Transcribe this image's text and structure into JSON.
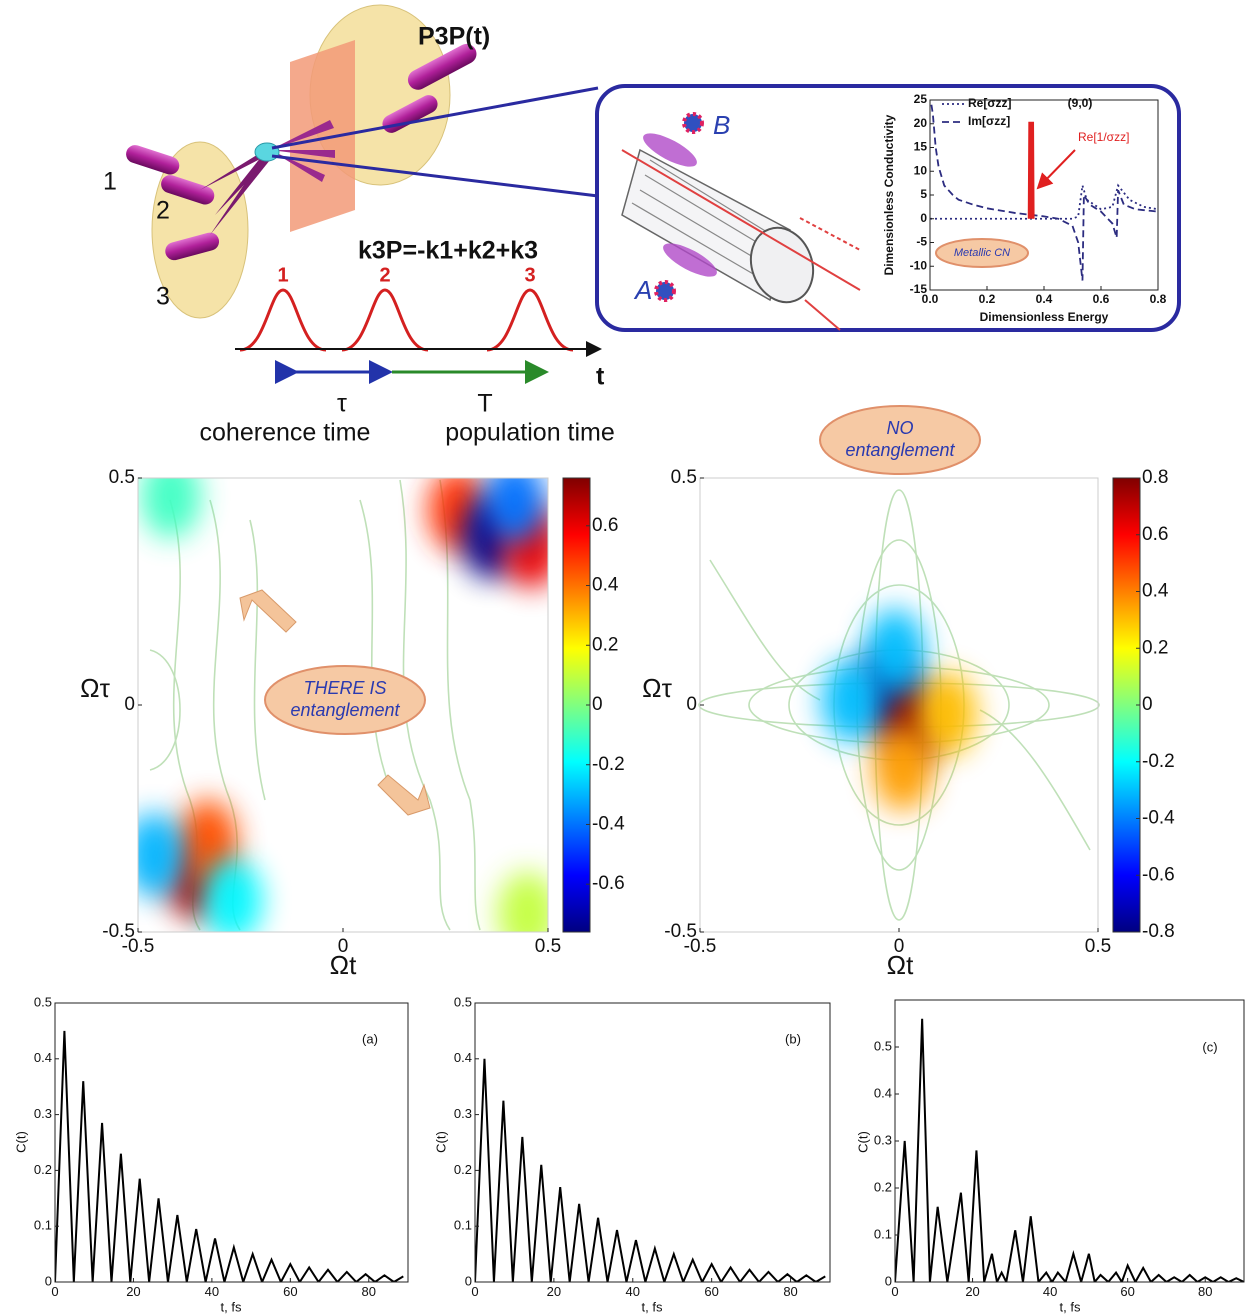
{
  "diagram": {
    "beam_labels": [
      "1",
      "2",
      "3"
    ],
    "signal": "P3P(t)",
    "wavevector": "k3P=-k1+k2+k3",
    "pulse_labels": [
      "1",
      "2",
      "3"
    ],
    "time_axis": "t",
    "intervals": [
      {
        "symbol": "τ",
        "label": "coherence time"
      },
      {
        "symbol": "T",
        "label": "population time"
      }
    ],
    "molecules": [
      "A",
      "B"
    ]
  },
  "chart_data": [
    {
      "type": "line",
      "x_label": "Dimensionless Energy",
      "y_label": "Dimensionless Conductivity",
      "annotations": [
        "(9,0)",
        "Metallic CN"
      ],
      "legend": "upper left",
      "xlim": [
        0,
        0.8
      ],
      "xticks": [
        {
          "value": 0,
          "label": "0.0"
        },
        0.2,
        0.4,
        0.6,
        0.8
      ],
      "ylim": [
        -15,
        25
      ],
      "yticks": [
        -15,
        -10,
        -5,
        0,
        5,
        10,
        15,
        20,
        25
      ],
      "series": [
        {
          "name": "Re[σzz]",
          "color": "#2c2c80",
          "dash": "dotted",
          "x": [
            0,
            0.1,
            0.2,
            0.3,
            0.4,
            0.5,
            0.52,
            0.535,
            0.55,
            0.6,
            0.64,
            0.66,
            0.7,
            0.75,
            0.8
          ],
          "values": [
            0,
            0,
            0,
            0,
            0,
            0,
            0.5,
            7,
            4,
            2,
            2.5,
            7,
            4,
            2.5,
            2
          ]
        },
        {
          "name": "Im[σzz]",
          "color": "#2c2c80",
          "dash": "dashed",
          "x": [
            0.005,
            0.01,
            0.02,
            0.03,
            0.05,
            0.08,
            0.1,
            0.15,
            0.2,
            0.3,
            0.4,
            0.45,
            0.5,
            0.52,
            0.535,
            0.54,
            0.56,
            0.6,
            0.64,
            0.655,
            0.66,
            0.68,
            0.72,
            0.8
          ],
          "values": [
            24,
            22,
            15,
            11,
            7,
            5,
            4,
            3,
            2.2,
            1.2,
            0.5,
            0,
            -1.5,
            -5,
            -13,
            5,
            3,
            1.5,
            -1,
            -4,
            6,
            3,
            2,
            1.5
          ]
        },
        {
          "name": "Re[1/σzz]",
          "color": "#e02020",
          "x": [
            0.35,
            0.352,
            0.358,
            0.36
          ],
          "values": [
            0,
            20,
            20,
            0
          ]
        }
      ]
    },
    {
      "type": "heatmap",
      "x_label": "Ωt",
      "y_label": "Ωτ",
      "annotation": [
        "THERE IS",
        "entanglement"
      ],
      "xlim": [
        -0.5,
        0.5
      ],
      "xticks": [
        -0.5,
        0,
        0.5
      ],
      "ylim": [
        -0.5,
        0.5
      ],
      "yticks": [
        -0.5,
        0,
        0.5
      ],
      "colorbar_lim": [
        -0.76,
        0.76
      ],
      "colorbar_ticks": [
        -0.6,
        -0.4,
        -0.2,
        0,
        0.2,
        0.4,
        0.6
      ],
      "peaks": [
        {
          "x": -0.36,
          "y": -0.38,
          "value": 0.7
        },
        {
          "x": -0.33,
          "y": -0.3,
          "value": 0.45
        },
        {
          "x": -0.46,
          "y": -0.33,
          "value": -0.3
        },
        {
          "x": -0.27,
          "y": -0.43,
          "value": -0.2
        },
        {
          "x": 0.28,
          "y": 0.43,
          "value": 0.5
        },
        {
          "x": 0.36,
          "y": 0.37,
          "value": -0.75
        },
        {
          "x": 0.46,
          "y": 0.35,
          "value": 0.6
        },
        {
          "x": 0.42,
          "y": 0.45,
          "value": -0.4
        },
        {
          "x": -0.42,
          "y": 0.46,
          "value": -0.1
        },
        {
          "x": 0.45,
          "y": -0.46,
          "value": 0.1
        }
      ]
    },
    {
      "type": "heatmap",
      "x_label": "Ωt",
      "y_label": "Ωτ",
      "annotation": [
        "NO",
        "entanglement"
      ],
      "xlim": [
        -0.5,
        0.5
      ],
      "xticks": [
        -0.5,
        0,
        0.5
      ],
      "ylim": [
        -0.5,
        0.5
      ],
      "yticks": [
        -0.5,
        0,
        0.5
      ],
      "colorbar_lim": [
        -0.8,
        0.8
      ],
      "colorbar_ticks": [
        -0.8,
        -0.6,
        -0.4,
        -0.2,
        0,
        0.2,
        0.4,
        0.6,
        0.8
      ],
      "peaks": [
        {
          "x": -0.03,
          "y": 0.03,
          "value": -0.8
        },
        {
          "x": 0.03,
          "y": -0.04,
          "value": 0.8
        },
        {
          "x": -0.12,
          "y": 0.01,
          "value": -0.3
        },
        {
          "x": 0.12,
          "y": -0.02,
          "value": 0.3
        },
        {
          "x": 0.01,
          "y": -0.14,
          "value": 0.35
        },
        {
          "x": -0.01,
          "y": 0.12,
          "value": -0.3
        }
      ]
    },
    {
      "type": "line",
      "panel": "(a)",
      "x_label": "t, fs",
      "y_label": "C(t)",
      "color": "#000000",
      "xlim": [
        0,
        90
      ],
      "xticks": [
        0,
        20,
        40,
        60,
        80
      ],
      "ylim": [
        0,
        0.5
      ],
      "yticks": [
        0,
        0.1,
        0.2,
        0.3,
        0.4,
        0.5
      ],
      "x": [
        0,
        2.4,
        4.8,
        7.2,
        9.6,
        12,
        14.4,
        16.8,
        19.2,
        21.6,
        24,
        26.4,
        28.8,
        31.2,
        33.6,
        36,
        38.4,
        40.8,
        43.2,
        45.6,
        48,
        50.4,
        52.8,
        55.2,
        57.6,
        60,
        62.4,
        64.8,
        67.2,
        69.6,
        72,
        74.4,
        76.8,
        79.2,
        81.6,
        84,
        86.4,
        88.8
      ],
      "values": [
        0,
        0.45,
        0,
        0.36,
        0,
        0.285,
        0,
        0.23,
        0,
        0.185,
        0,
        0.15,
        0,
        0.12,
        0,
        0.095,
        0,
        0.078,
        0,
        0.062,
        0,
        0.05,
        0,
        0.04,
        0,
        0.032,
        0,
        0.026,
        0,
        0.022,
        0,
        0.018,
        0,
        0.014,
        0,
        0.012,
        0,
        0.01
      ]
    },
    {
      "type": "line",
      "panel": "(b)",
      "x_label": "t, fs",
      "y_label": "C(t)",
      "color": "#000000",
      "xlim": [
        0,
        90
      ],
      "xticks": [
        0,
        20,
        40,
        60,
        80
      ],
      "ylim": [
        0,
        0.5
      ],
      "yticks": [
        0,
        0.1,
        0.2,
        0.3,
        0.4,
        0.5
      ],
      "x": [
        0,
        2.4,
        4.8,
        7.2,
        9.6,
        12,
        14.4,
        16.8,
        19.2,
        21.6,
        24,
        26.4,
        28.8,
        31.2,
        33.6,
        36,
        38.4,
        40.8,
        43.2,
        45.6,
        48,
        50.4,
        52.8,
        55.2,
        57.6,
        60,
        62.4,
        64.8,
        67.2,
        69.6,
        72,
        74.4,
        76.8,
        79.2,
        81.6,
        84,
        86.4,
        88.8
      ],
      "values": [
        0,
        0.4,
        0,
        0.325,
        0,
        0.26,
        0,
        0.21,
        0,
        0.17,
        0,
        0.14,
        0,
        0.115,
        0,
        0.093,
        0,
        0.075,
        0,
        0.06,
        0,
        0.05,
        0,
        0.04,
        0,
        0.032,
        0,
        0.026,
        0,
        0.022,
        0,
        0.018,
        0,
        0.014,
        0,
        0.012,
        0,
        0.01
      ]
    },
    {
      "type": "line",
      "panel": "(c)",
      "x_label": "t, fs",
      "y_label": "C(t)",
      "color": "#000000",
      "xlim": [
        0,
        90
      ],
      "xticks": [
        0,
        20,
        40,
        60,
        80
      ],
      "ylim": [
        0,
        0.6
      ],
      "yticks": [
        0,
        0.1,
        0.2,
        0.3,
        0.4,
        0.5
      ],
      "x": [
        0,
        2.5,
        4.8,
        7,
        9,
        11,
        13.5,
        17,
        19,
        21,
        23,
        25,
        26.3,
        27.5,
        28.7,
        31,
        33,
        35,
        37,
        39,
        40.5,
        42,
        44,
        46,
        48,
        50,
        51.5,
        53,
        55,
        57,
        58.5,
        60,
        62,
        64,
        66,
        68,
        70,
        72,
        74,
        76,
        78,
        80,
        82,
        84,
        86,
        88,
        90
      ],
      "values": [
        0,
        0.3,
        0,
        0.56,
        0,
        0.16,
        0,
        0.19,
        0,
        0.28,
        0,
        0.06,
        0,
        0.02,
        0,
        0.11,
        0,
        0.14,
        0,
        0.02,
        0,
        0.02,
        0,
        0.06,
        0,
        0.06,
        0,
        0.015,
        0,
        0.02,
        0,
        0.035,
        0,
        0.03,
        0,
        0.015,
        0,
        0.01,
        0,
        0.015,
        0,
        0.01,
        0,
        0.01,
        0,
        0.008,
        0
      ]
    }
  ]
}
